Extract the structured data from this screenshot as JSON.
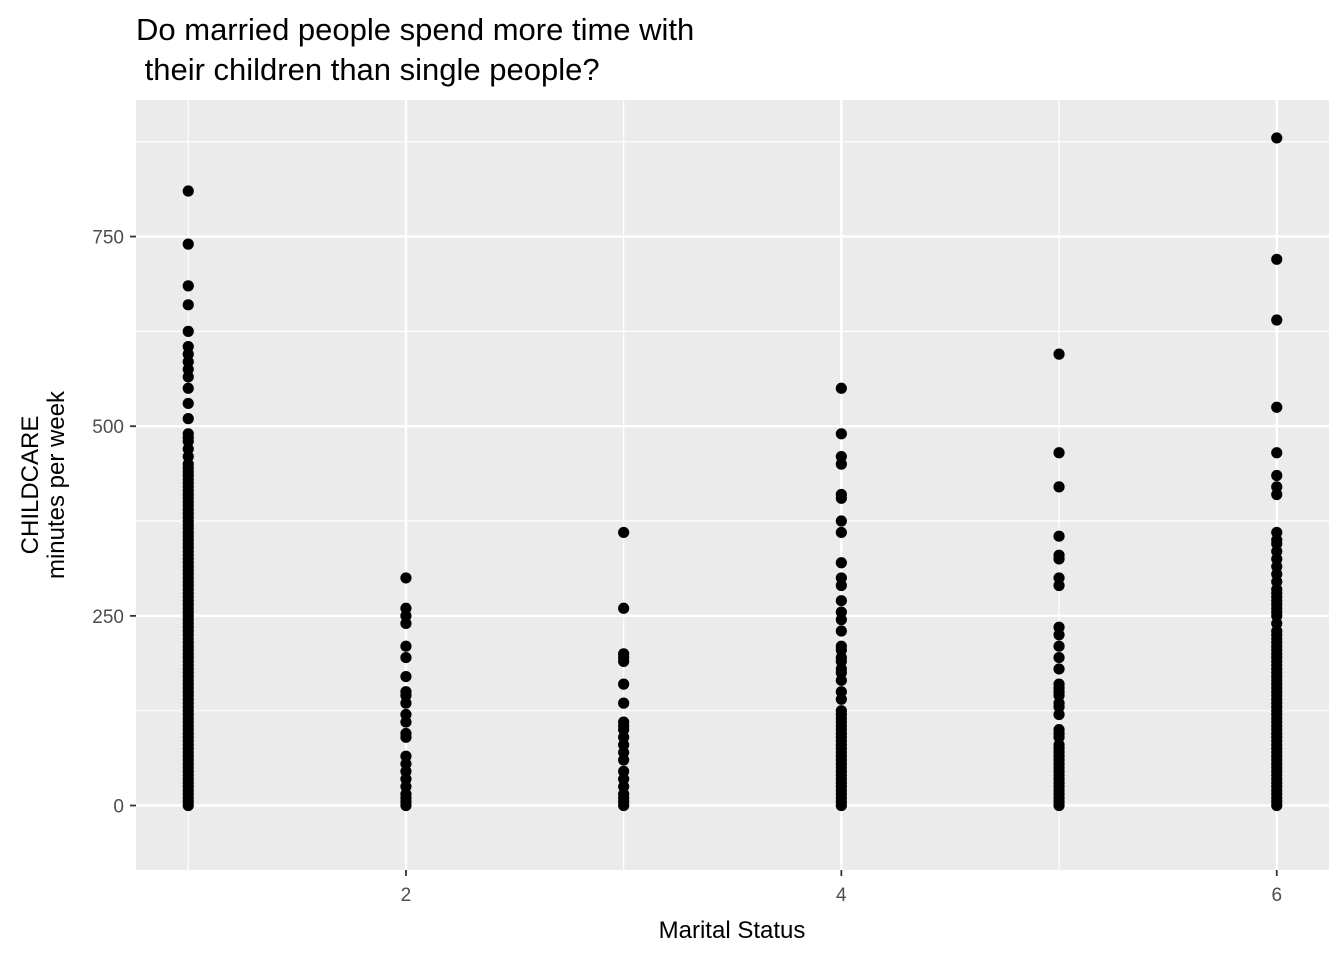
{
  "chart_data": {
    "type": "scatter",
    "title_lines": [
      "Do married people spend more time with",
      " their children than single people?"
    ],
    "xlabel": "Marital Status",
    "ylabel_lines": [
      "CHILDCARE",
      "minutes per week"
    ],
    "xlim": [
      0.76,
      6.24
    ],
    "ylim": [
      -85,
      930
    ],
    "x_ticks": [
      2,
      4,
      6
    ],
    "y_ticks": [
      0,
      250,
      500,
      750
    ],
    "grid": true,
    "legend": "none",
    "colors": {
      "panel": "#ebebeb",
      "grid": "#ffffff",
      "point": "#000000",
      "tick_text": "#4d4d4d"
    },
    "series": [
      {
        "x": 1,
        "y": [
          0,
          5,
          10,
          15,
          20,
          25,
          30,
          35,
          40,
          45,
          50,
          55,
          60,
          65,
          70,
          75,
          80,
          85,
          90,
          95,
          100,
          105,
          110,
          115,
          120,
          125,
          130,
          135,
          140,
          145,
          150,
          155,
          160,
          165,
          170,
          175,
          180,
          185,
          190,
          195,
          200,
          205,
          210,
          215,
          220,
          225,
          230,
          235,
          240,
          245,
          250,
          255,
          260,
          265,
          270,
          275,
          280,
          285,
          290,
          295,
          300,
          305,
          310,
          315,
          320,
          325,
          330,
          335,
          340,
          345,
          350,
          355,
          360,
          365,
          370,
          375,
          380,
          385,
          390,
          395,
          400,
          405,
          410,
          415,
          420,
          425,
          430,
          435,
          440,
          445,
          450,
          460,
          470,
          480,
          485,
          490,
          510,
          530,
          550,
          565,
          575,
          585,
          595,
          605,
          625,
          660,
          685,
          740,
          810
        ]
      },
      {
        "x": 2,
        "y": [
          0,
          5,
          10,
          15,
          25,
          35,
          45,
          55,
          65,
          90,
          95,
          110,
          120,
          135,
          145,
          150,
          170,
          195,
          210,
          240,
          250,
          260,
          300
        ]
      },
      {
        "x": 3,
        "y": [
          0,
          5,
          10,
          15,
          25,
          35,
          45,
          60,
          70,
          80,
          90,
          100,
          105,
          110,
          135,
          160,
          190,
          195,
          200,
          260,
          360
        ]
      },
      {
        "x": 4,
        "y": [
          0,
          5,
          10,
          15,
          20,
          25,
          30,
          35,
          40,
          45,
          50,
          55,
          60,
          65,
          70,
          75,
          80,
          85,
          90,
          95,
          100,
          105,
          110,
          115,
          120,
          125,
          140,
          150,
          165,
          175,
          180,
          190,
          195,
          205,
          210,
          230,
          245,
          255,
          270,
          290,
          300,
          320,
          360,
          375,
          405,
          410,
          450,
          460,
          490,
          550
        ]
      },
      {
        "x": 5,
        "y": [
          0,
          5,
          10,
          15,
          20,
          25,
          30,
          35,
          40,
          45,
          50,
          55,
          60,
          65,
          70,
          75,
          80,
          90,
          95,
          100,
          120,
          130,
          135,
          145,
          150,
          155,
          160,
          180,
          195,
          210,
          225,
          235,
          290,
          300,
          325,
          330,
          355,
          420,
          465,
          595
        ]
      },
      {
        "x": 6,
        "y": [
          0,
          5,
          10,
          15,
          20,
          25,
          30,
          35,
          40,
          45,
          50,
          55,
          60,
          65,
          70,
          75,
          80,
          85,
          90,
          95,
          100,
          105,
          110,
          115,
          120,
          125,
          130,
          135,
          140,
          145,
          150,
          155,
          160,
          165,
          170,
          175,
          180,
          185,
          190,
          195,
          200,
          205,
          210,
          215,
          220,
          225,
          230,
          240,
          250,
          255,
          260,
          265,
          270,
          275,
          280,
          285,
          295,
          305,
          315,
          325,
          335,
          345,
          350,
          360,
          410,
          420,
          435,
          465,
          525,
          640,
          720,
          880
        ]
      }
    ]
  }
}
